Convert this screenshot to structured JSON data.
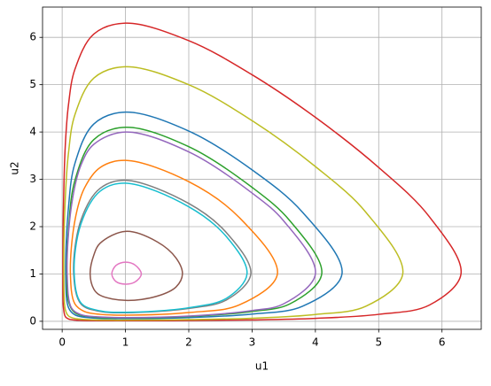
{
  "chart_data": {
    "type": "line",
    "xlabel": "u1",
    "ylabel": "u2",
    "xlim": [
      -0.31,
      6.62
    ],
    "ylim": [
      -0.17,
      6.64
    ],
    "xticks": [
      0,
      1,
      2,
      3,
      4,
      5,
      6
    ],
    "yticks": [
      0,
      1,
      2,
      3,
      4,
      5,
      6
    ],
    "grid": true,
    "series": [
      {
        "color": "#1f77b4",
        "x": [
          0.056,
          0.1,
          0.2,
          0.5,
          1,
          2,
          3,
          3.8,
          4.42,
          3.8,
          3,
          2,
          1,
          0.5,
          0.2,
          0.1,
          0.056
        ],
        "values": [
          1,
          2.41,
          3.33,
          4.17,
          4.42,
          4.02,
          3.2,
          2.3,
          1,
          0.32,
          0.153,
          0.078,
          0.056,
          0.069,
          0.137,
          0.29,
          1
        ]
      },
      {
        "color": "#ff7f0e",
        "x": [
          0.13,
          0.2,
          0.35,
          0.6,
          1,
          2,
          2.8,
          3.4,
          2.8,
          2,
          1,
          0.6,
          0.35,
          0.2,
          0.13
        ],
        "values": [
          1,
          2.12,
          2.81,
          3.25,
          3.4,
          2.95,
          2.19,
          1,
          0.347,
          0.185,
          0.13,
          0.147,
          0.208,
          0.37,
          1
        ]
      },
      {
        "color": "#2ca02c",
        "x": [
          0.073,
          0.1,
          0.2,
          0.5,
          1,
          2,
          3,
          3.6,
          4.1,
          3.6,
          3,
          2,
          1,
          0.5,
          0.2,
          0.1,
          0.073
        ],
        "values": [
          1,
          1.95,
          2.97,
          3.84,
          4.1,
          3.69,
          2.83,
          2.12,
          1,
          0.37,
          0.206,
          0.102,
          0.073,
          0.09,
          0.183,
          0.42,
          1
        ]
      },
      {
        "color": "#d62728",
        "x": [
          0.0117,
          0.02,
          0.05,
          0.1,
          0.2,
          0.5,
          1,
          2,
          3,
          4,
          5,
          5.8,
          6.3,
          5.8,
          5,
          4,
          3,
          2,
          1,
          0.5,
          0.2,
          0.1,
          0.05,
          0.02,
          0.0117
        ],
        "values": [
          1,
          2.4,
          3.73,
          4.58,
          5.32,
          6.07,
          6.3,
          5.93,
          5.21,
          4.31,
          3.25,
          2.21,
          1,
          0.342,
          0.147,
          0.062,
          0.029,
          0.0159,
          0.0117,
          0.0142,
          0.027,
          0.0494,
          0.099,
          0.29,
          1
        ]
      },
      {
        "color": "#9467bd",
        "x": [
          0.079,
          0.15,
          0.3,
          0.5,
          1,
          2,
          3,
          3.5,
          4,
          3.5,
          3,
          2,
          1,
          0.5,
          0.3,
          0.15,
          0.079
        ],
        "values": [
          1,
          2.47,
          3.31,
          3.74,
          4.0,
          3.58,
          2.71,
          2.12,
          1,
          0.37,
          0.227,
          0.111,
          0.079,
          0.098,
          0.139,
          0.276,
          1
        ]
      },
      {
        "color": "#8c564b",
        "x": [
          0.442,
          0.5,
          0.6,
          1,
          1.5,
          1.8,
          1.9,
          1.8,
          1.5,
          1,
          0.6,
          0.5,
          0.442
        ],
        "values": [
          1,
          1.4,
          1.65,
          1.9,
          1.68,
          1.335,
          1,
          0.727,
          0.531,
          0.442,
          0.55,
          0.68,
          1
        ]
      },
      {
        "color": "#e377c2",
        "x": [
          0.785,
          0.85,
          1,
          1.15,
          1.25,
          1.15,
          1,
          0.85,
          0.785
        ],
        "values": [
          1,
          1.18,
          1.25,
          1.19,
          1,
          0.83,
          0.785,
          0.84,
          1
        ]
      },
      {
        "color": "#7f7f7f",
        "x": [
          0.182,
          0.3,
          0.6,
          1,
          2,
          2.6,
          2.98,
          2.6,
          2,
          1,
          0.6,
          0.3,
          0.182
        ],
        "values": [
          1,
          2.15,
          2.81,
          2.98,
          2.49,
          1.865,
          1,
          0.455,
          0.272,
          0.182,
          0.208,
          0.36,
          1
        ]
      },
      {
        "color": "#bcbd22",
        "x": [
          0.0254,
          0.05,
          0.1,
          0.2,
          0.5,
          1,
          2,
          3,
          4,
          4.8,
          5.38,
          4.8,
          4,
          3,
          2,
          1,
          0.5,
          0.2,
          0.1,
          0.05,
          0.0254
        ],
        "values": [
          1,
          2.61,
          3.56,
          4.36,
          5.14,
          5.38,
          5.0,
          4.24,
          3.27,
          2.3,
          1,
          0.32,
          0.144,
          0.065,
          0.035,
          0.0254,
          0.031,
          0.0591,
          0.113,
          0.246,
          1
        ]
      },
      {
        "color": "#17becf",
        "x": [
          0.19,
          0.3,
          0.6,
          1,
          2,
          2.6,
          2.92,
          2.6,
          2,
          1,
          0.6,
          0.3,
          0.19
        ],
        "values": [
          1,
          2.07,
          2.75,
          2.92,
          2.42,
          1.78,
          1,
          0.49,
          0.287,
          0.19,
          0.22,
          0.383,
          1
        ]
      }
    ]
  }
}
